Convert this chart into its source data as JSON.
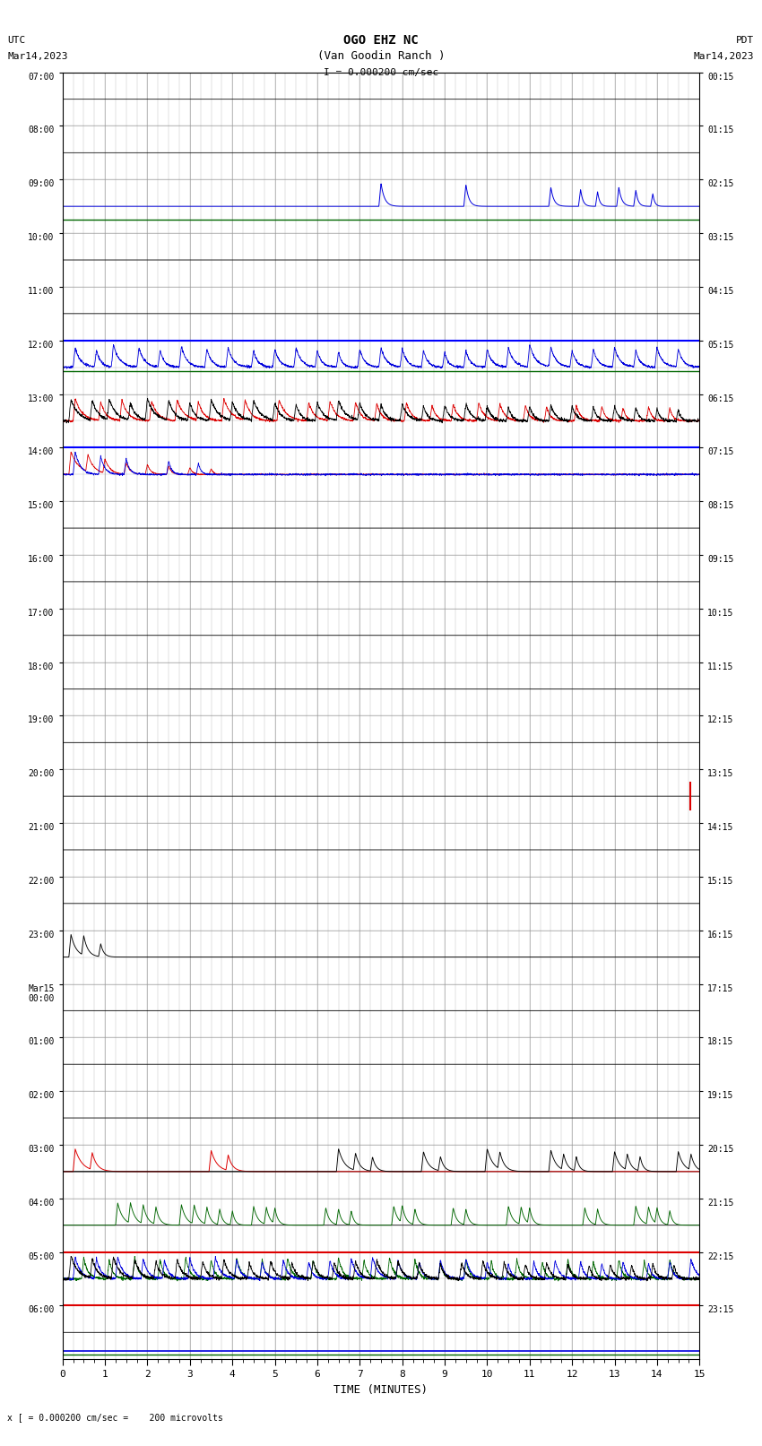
{
  "title_line1": "OGO EHZ NC",
  "title_line2": "(Van Goodin Ranch )",
  "title_line3": "I = 0.000200 cm/sec",
  "left_header_line1": "UTC",
  "left_header_line2": "Mar14,2023",
  "right_header_line1": "PDT",
  "right_header_line2": "Mar14,2023",
  "footer_text": "x [ = 0.000200 cm/sec =    200 microvolts",
  "xlabel": "TIME (MINUTES)",
  "left_times_utc": [
    "07:00",
    "08:00",
    "09:00",
    "10:00",
    "11:00",
    "12:00",
    "13:00",
    "14:00",
    "15:00",
    "16:00",
    "17:00",
    "18:00",
    "19:00",
    "20:00",
    "21:00",
    "22:00",
    "23:00",
    "Mar15\n00:00",
    "01:00",
    "02:00",
    "03:00",
    "04:00",
    "05:00",
    "06:00"
  ],
  "right_times_pdt": [
    "00:15",
    "01:15",
    "02:15",
    "03:15",
    "04:15",
    "05:15",
    "06:15",
    "07:15",
    "08:15",
    "09:15",
    "10:15",
    "11:15",
    "12:15",
    "13:15",
    "14:15",
    "15:15",
    "16:15",
    "17:15",
    "18:15",
    "19:15",
    "20:15",
    "21:15",
    "22:15",
    "23:15"
  ],
  "n_rows": 24,
  "n_cols": 15,
  "bg_color": "#ffffff",
  "grid_color": "#999999",
  "trace_black": "#000000",
  "trace_blue": "#0000dd",
  "trace_red": "#dd0000",
  "trace_green": "#006600",
  "highlight_blue": "#0000ff",
  "highlight_red": "#ff0000"
}
